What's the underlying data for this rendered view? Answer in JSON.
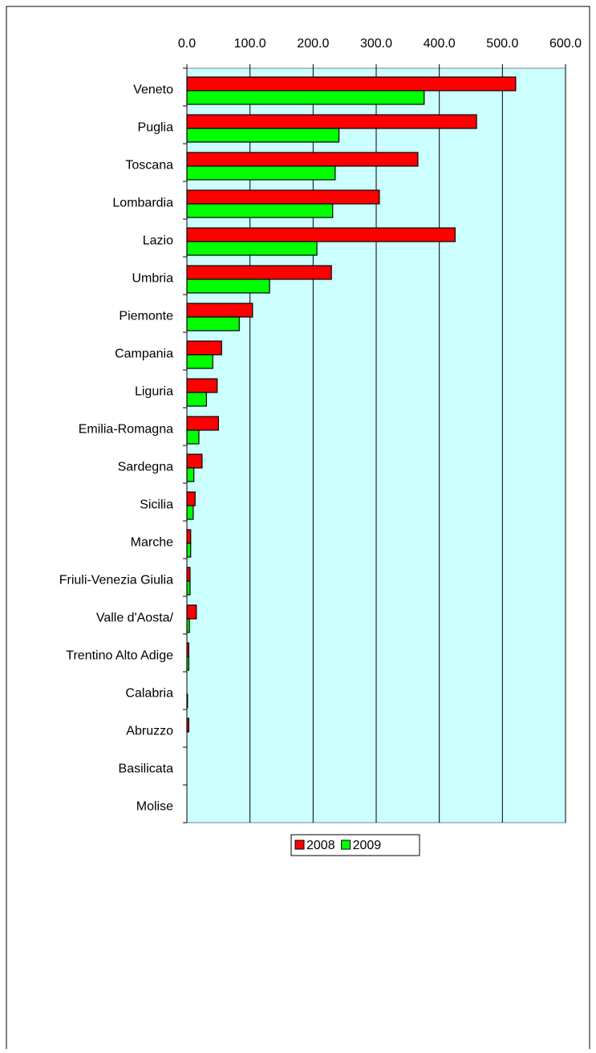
{
  "chart_data": {
    "type": "bar",
    "orientation": "horizontal",
    "categories": [
      "Veneto",
      "Puglia",
      "Toscana",
      "Lombardia",
      "Lazio",
      "Umbria",
      "Piemonte",
      "Campania",
      "Liguria",
      "Emilia-Romagna",
      "Sardegna",
      "Sicilia",
      "Marche",
      "Friuli-Venezia Giulia",
      "Valle d'Aosta/",
      "Trentino Alto Adige",
      "Calabria",
      "Abruzzo",
      "Basilicata",
      "Molise"
    ],
    "series": [
      {
        "name": "2008",
        "color": "#ff0000",
        "values": [
          521,
          459,
          366,
          305,
          425,
          229,
          104,
          55,
          48,
          50,
          24,
          13,
          6,
          5,
          15,
          3,
          0,
          3,
          0,
          0
        ]
      },
      {
        "name": "2009",
        "color": "#00ff00",
        "values": [
          376,
          241,
          235,
          231,
          206,
          131,
          83,
          41,
          31,
          19,
          11,
          10,
          6,
          5,
          4,
          3,
          1,
          0,
          0,
          0
        ]
      }
    ],
    "xlim": [
      0,
      600
    ],
    "xticks": [
      {
        "value": 0,
        "label": "0.0"
      },
      {
        "value": 100,
        "label": "100.0"
      },
      {
        "value": 200,
        "label": "200.0"
      },
      {
        "value": 300,
        "label": "300.0"
      },
      {
        "value": 400,
        "label": "400.0"
      },
      {
        "value": 500,
        "label": "500.0"
      },
      {
        "value": 600,
        "label": "600.0"
      }
    ],
    "grid": true,
    "legend": "bottom",
    "background": "#ccffff"
  }
}
